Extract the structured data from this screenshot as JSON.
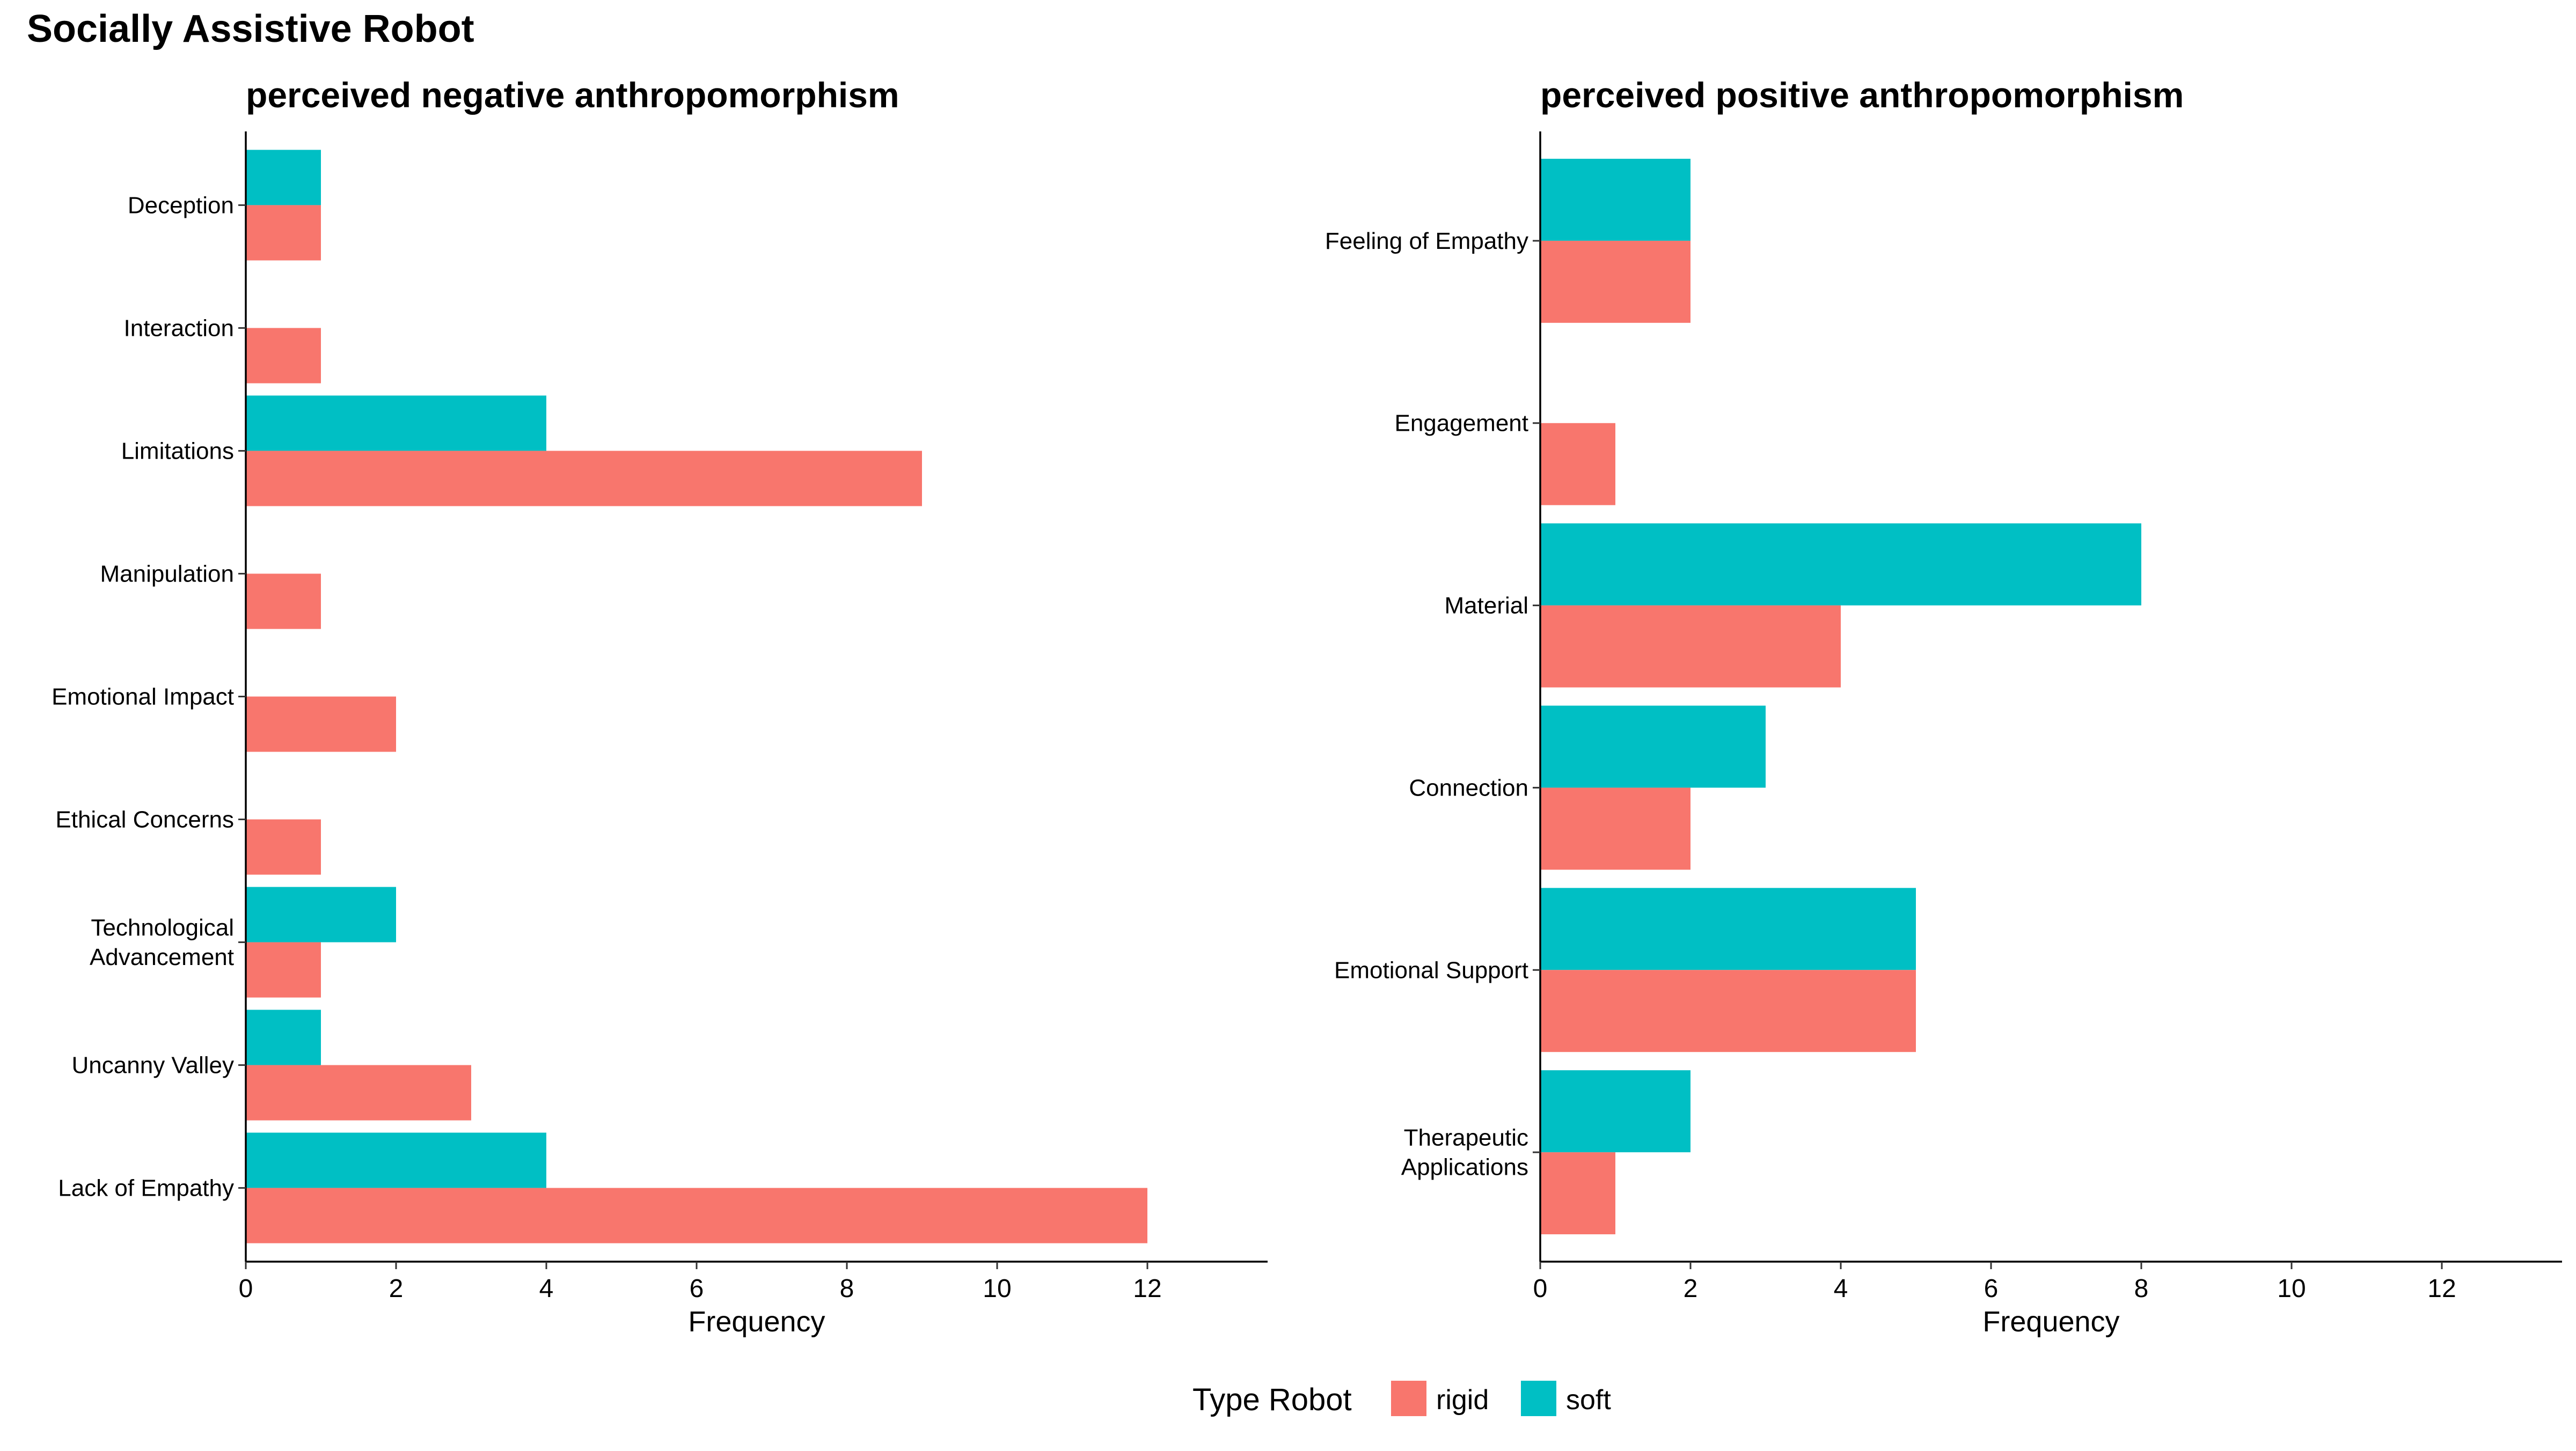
{
  "title": "Socially Assistive Robot",
  "colors": {
    "rigid": "#F8766D",
    "soft": "#00BFC4"
  },
  "legend": {
    "title": "Type Robot",
    "position": "bottom",
    "items": [
      {
        "key": "rigid",
        "label": "rigid"
      },
      {
        "key": "soft",
        "label": "soft"
      }
    ]
  },
  "chart_data": [
    {
      "type": "bar",
      "orientation": "horizontal",
      "title": "perceived negative anthropomorphism",
      "xlabel": "Frequency",
      "ylabel": "",
      "xlim": [
        0,
        13.6
      ],
      "xticks": [
        0,
        2,
        4,
        6,
        8,
        10,
        12
      ],
      "grid": false,
      "categories": [
        "Deception",
        "Interaction",
        "Limitations",
        "Manipulation",
        "Emotional Impact",
        "Ethical Concerns",
        "Technological\nAdvancement",
        "Uncanny Valley",
        "Lack of Empathy"
      ],
      "series": [
        {
          "name": "rigid",
          "values": [
            1,
            1,
            9,
            1,
            2,
            1,
            1,
            3,
            12
          ]
        },
        {
          "name": "soft",
          "values": [
            1,
            null,
            4,
            null,
            null,
            null,
            2,
            1,
            4
          ]
        }
      ]
    },
    {
      "type": "bar",
      "orientation": "horizontal",
      "title": "perceived positive anthropomorphism",
      "xlabel": "Frequency",
      "ylabel": "",
      "xlim": [
        0,
        13.6
      ],
      "xticks": [
        0,
        2,
        4,
        6,
        8,
        10,
        12
      ],
      "grid": false,
      "categories": [
        "Feeling of Empathy",
        "Engagement",
        "Material",
        "Connection",
        "Emotional Support",
        "Therapeutic\nApplications"
      ],
      "series": [
        {
          "name": "rigid",
          "values": [
            2,
            1,
            4,
            2,
            5,
            1
          ]
        },
        {
          "name": "soft",
          "values": [
            2,
            null,
            8,
            3,
            5,
            2
          ]
        }
      ]
    }
  ]
}
